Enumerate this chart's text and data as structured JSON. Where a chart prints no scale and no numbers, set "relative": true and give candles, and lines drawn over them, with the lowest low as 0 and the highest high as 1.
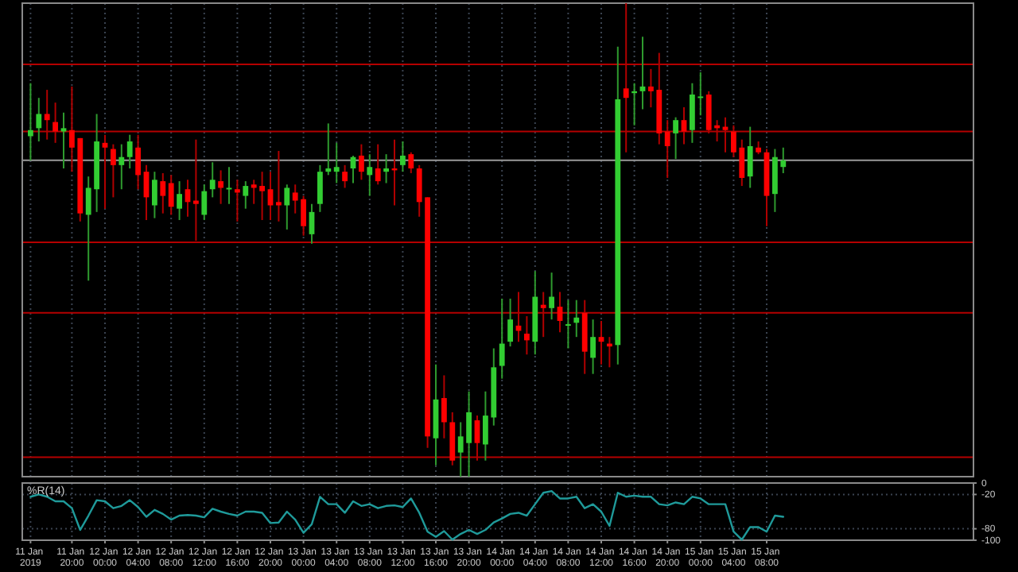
{
  "chart_data": [
    {
      "type": "candlestick",
      "relative": true,
      "grid": "x",
      "tick_labels": false,
      "xlim": [
        "2019-01-11T14:00",
        "2019-01-16T09:00"
      ],
      "xticks": [
        {
          "value": "2019-01-11T15:00",
          "label": null
        },
        {
          "value": "2019-01-11T20:00",
          "label": null
        },
        {
          "value": "2019-01-12T00:00",
          "label": null
        },
        {
          "value": "2019-01-12T04:00",
          "label": null
        },
        {
          "value": "2019-01-12T08:00",
          "label": null
        },
        {
          "value": "2019-01-12T12:00",
          "label": null
        },
        {
          "value": "2019-01-12T16:00",
          "label": null
        },
        {
          "value": "2019-01-12T20:00",
          "label": null
        },
        {
          "value": "2019-01-13T00:00",
          "label": null
        },
        {
          "value": "2019-01-13T04:00",
          "label": null
        },
        {
          "value": "2019-01-13T08:00",
          "label": null
        },
        {
          "value": "2019-01-13T12:00",
          "label": null
        },
        {
          "value": "2019-01-13T16:00",
          "label": null
        },
        {
          "value": "2019-01-13T20:00",
          "label": null
        },
        {
          "value": "2019-01-14T00:00",
          "label": null
        },
        {
          "value": "2019-01-14T04:00",
          "label": null
        },
        {
          "value": "2019-01-14T08:00",
          "label": null
        },
        {
          "value": "2019-01-14T12:00",
          "label": null
        },
        {
          "value": "2019-01-14T16:00",
          "label": null
        },
        {
          "value": "2019-01-14T20:00",
          "label": null
        },
        {
          "value": "2019-01-15T00:00",
          "label": null
        },
        {
          "value": "2019-01-15T04:00",
          "label": null
        },
        {
          "value": "2019-01-15T08:00",
          "label": null
        }
      ],
      "x": [
        "2019-01-11T15:00",
        "2019-01-11T16:00",
        "2019-01-11T17:00",
        "2019-01-11T18:00",
        "2019-01-11T19:00",
        "2019-01-11T20:00",
        "2019-01-11T21:00",
        "2019-01-11T22:00",
        "2019-01-11T23:00",
        "2019-01-12T00:00",
        "2019-01-12T01:00",
        "2019-01-12T02:00",
        "2019-01-12T03:00",
        "2019-01-12T04:00",
        "2019-01-12T05:00",
        "2019-01-12T06:00",
        "2019-01-12T07:00",
        "2019-01-12T08:00",
        "2019-01-12T09:00",
        "2019-01-12T10:00",
        "2019-01-12T11:00",
        "2019-01-12T12:00",
        "2019-01-12T13:00",
        "2019-01-12T14:00",
        "2019-01-12T15:00",
        "2019-01-12T16:00",
        "2019-01-12T17:00",
        "2019-01-12T18:00",
        "2019-01-12T19:00",
        "2019-01-12T20:00",
        "2019-01-12T21:00",
        "2019-01-12T22:00",
        "2019-01-12T23:00",
        "2019-01-13T00:00",
        "2019-01-13T01:00",
        "2019-01-13T02:00",
        "2019-01-13T03:00",
        "2019-01-13T04:00",
        "2019-01-13T05:00",
        "2019-01-13T06:00",
        "2019-01-13T07:00",
        "2019-01-13T08:00",
        "2019-01-13T09:00",
        "2019-01-13T10:00",
        "2019-01-13T11:00",
        "2019-01-13T12:00",
        "2019-01-13T13:00",
        "2019-01-13T14:00",
        "2019-01-13T15:00",
        "2019-01-13T16:00",
        "2019-01-13T17:00",
        "2019-01-13T18:00",
        "2019-01-13T19:00",
        "2019-01-13T20:00",
        "2019-01-13T21:00",
        "2019-01-13T22:00",
        "2019-01-13T23:00",
        "2019-01-14T00:00",
        "2019-01-14T01:00",
        "2019-01-14T02:00",
        "2019-01-14T03:00",
        "2019-01-14T04:00",
        "2019-01-14T05:00",
        "2019-01-14T06:00",
        "2019-01-14T07:00",
        "2019-01-14T08:00",
        "2019-01-14T09:00",
        "2019-01-14T10:00",
        "2019-01-14T11:00",
        "2019-01-14T12:00",
        "2019-01-14T13:00",
        "2019-01-14T14:00",
        "2019-01-14T15:00",
        "2019-01-14T16:00",
        "2019-01-14T17:00",
        "2019-01-14T18:00",
        "2019-01-14T19:00",
        "2019-01-14T20:00",
        "2019-01-14T21:00",
        "2019-01-14T22:00",
        "2019-01-14T23:00",
        "2019-01-15T00:00",
        "2019-01-15T01:00",
        "2019-01-15T02:00",
        "2019-01-15T03:00",
        "2019-01-15T04:00",
        "2019-01-15T05:00",
        "2019-01-15T06:00",
        "2019-01-15T07:00",
        "2019-01-15T08:00",
        "2019-01-15T09:00",
        "2019-01-15T10:00"
      ],
      "ohlc": [
        [
          0.719,
          0.831,
          0.668,
          0.732
        ],
        [
          0.736,
          0.8,
          0.708,
          0.766
        ],
        [
          0.766,
          0.817,
          0.712,
          0.753
        ],
        [
          0.749,
          0.79,
          0.705,
          0.729
        ],
        [
          0.729,
          0.769,
          0.651,
          0.736
        ],
        [
          0.732,
          0.824,
          0.644,
          0.695
        ],
        [
          0.715,
          0.715,
          0.539,
          0.556
        ],
        [
          0.553,
          0.634,
          0.414,
          0.61
        ],
        [
          0.607,
          0.766,
          0.559,
          0.708
        ],
        [
          0.705,
          0.722,
          0.566,
          0.695
        ],
        [
          0.692,
          0.702,
          0.59,
          0.658
        ],
        [
          0.658,
          0.702,
          0.607,
          0.675
        ],
        [
          0.675,
          0.722,
          0.651,
          0.708
        ],
        [
          0.695,
          0.722,
          0.607,
          0.637
        ],
        [
          0.644,
          0.658,
          0.542,
          0.59
        ],
        [
          0.573,
          0.644,
          0.546,
          0.627
        ],
        [
          0.624,
          0.641,
          0.556,
          0.593
        ],
        [
          0.62,
          0.637,
          0.553,
          0.57
        ],
        [
          0.566,
          0.624,
          0.542,
          0.597
        ],
        [
          0.607,
          0.627,
          0.549,
          0.58
        ],
        [
          0.583,
          0.712,
          0.498,
          0.576
        ],
        [
          0.553,
          0.617,
          0.542,
          0.603
        ],
        [
          0.607,
          0.664,
          0.59,
          0.627
        ],
        [
          0.624,
          0.647,
          0.576,
          0.61
        ],
        [
          0.607,
          0.654,
          0.576,
          0.61
        ],
        [
          0.607,
          0.627,
          0.539,
          0.6
        ],
        [
          0.593,
          0.624,
          0.566,
          0.614
        ],
        [
          0.617,
          0.627,
          0.576,
          0.61
        ],
        [
          0.614,
          0.644,
          0.542,
          0.603
        ],
        [
          0.607,
          0.644,
          0.542,
          0.573
        ],
        [
          0.58,
          0.688,
          0.539,
          0.573
        ],
        [
          0.573,
          0.617,
          0.522,
          0.61
        ],
        [
          0.6,
          0.617,
          0.556,
          0.583
        ],
        [
          0.586,
          0.593,
          0.509,
          0.529
        ],
        [
          0.512,
          0.576,
          0.492,
          0.559
        ],
        [
          0.576,
          0.658,
          0.559,
          0.644
        ],
        [
          0.644,
          0.746,
          0.637,
          0.651
        ],
        [
          0.644,
          0.705,
          0.62,
          0.654
        ],
        [
          0.644,
          0.658,
          0.61,
          0.624
        ],
        [
          0.651,
          0.678,
          0.62,
          0.675
        ],
        [
          0.678,
          0.702,
          0.627,
          0.644
        ],
        [
          0.637,
          0.681,
          0.593,
          0.654
        ],
        [
          0.651,
          0.702,
          0.617,
          0.624
        ],
        [
          0.644,
          0.681,
          0.62,
          0.651
        ],
        [
          0.651,
          0.712,
          0.573,
          0.647
        ],
        [
          0.658,
          0.708,
          0.644,
          0.678
        ],
        [
          0.681,
          0.685,
          0.641,
          0.651
        ],
        [
          0.651,
          0.658,
          0.549,
          0.58
        ],
        [
          0.59,
          0.59,
          0.061,
          0.085
        ],
        [
          0.081,
          0.237,
          0.024,
          0.163
        ],
        [
          0.166,
          0.214,
          0.081,
          0.115
        ],
        [
          0.115,
          0.136,
          0.024,
          0.034
        ],
        [
          0.051,
          0.115,
          0,
          0.085
        ],
        [
          0.071,
          0.18,
          0,
          0.136
        ],
        [
          0.119,
          0.129,
          0.034,
          0.071
        ],
        [
          0.068,
          0.18,
          0.034,
          0.129
        ],
        [
          0.125,
          0.271,
          0.108,
          0.231
        ],
        [
          0.234,
          0.376,
          0.207,
          0.281
        ],
        [
          0.285,
          0.376,
          0.275,
          0.332
        ],
        [
          0.319,
          0.39,
          0.285,
          0.308
        ],
        [
          0.302,
          0.339,
          0.258,
          0.288
        ],
        [
          0.285,
          0.434,
          0.258,
          0.38
        ],
        [
          0.363,
          0.39,
          0.295,
          0.356
        ],
        [
          0.356,
          0.431,
          0.332,
          0.38
        ],
        [
          0.359,
          0.39,
          0.305,
          0.329
        ],
        [
          0.319,
          0.373,
          0.271,
          0.322
        ],
        [
          0.325,
          0.373,
          0.295,
          0.336
        ],
        [
          0.346,
          0.373,
          0.217,
          0.264
        ],
        [
          0.251,
          0.332,
          0.217,
          0.295
        ],
        [
          0.295,
          0.329,
          0.237,
          0.285
        ],
        [
          0.281,
          0.295,
          0.231,
          0.275
        ],
        [
          0.278,
          0.908,
          0.237,
          0.797
        ],
        [
          0.82,
          1,
          0.685,
          0.8
        ],
        [
          0.81,
          0.831,
          0.742,
          0.814
        ],
        [
          0.814,
          0.929,
          0.776,
          0.824
        ],
        [
          0.824,
          0.861,
          0.78,
          0.814
        ],
        [
          0.817,
          0.895,
          0.702,
          0.725
        ],
        [
          0.729,
          0.753,
          0.631,
          0.698
        ],
        [
          0.725,
          0.759,
          0.671,
          0.753
        ],
        [
          0.753,
          0.78,
          0.702,
          0.729
        ],
        [
          0.732,
          0.831,
          0.705,
          0.807
        ],
        [
          0.8,
          0.854,
          0.763,
          0.803
        ],
        [
          0.807,
          0.814,
          0.725,
          0.732
        ],
        [
          0.742,
          0.753,
          0.708,
          0.736
        ],
        [
          0.739,
          0.759,
          0.685,
          0.732
        ],
        [
          0.729,
          0.742,
          0.675,
          0.685
        ],
        [
          0.695,
          0.712,
          0.614,
          0.631
        ],
        [
          0.634,
          0.739,
          0.61,
          0.698
        ],
        [
          0.695,
          0.708,
          0.681,
          0.685
        ],
        [
          0.685,
          0.692,
          0.529,
          0.593
        ],
        [
          0.597,
          0.692,
          0.559,
          0.675
        ],
        [
          0.654,
          0.695,
          0.641,
          0.668
        ]
      ],
      "ref_lines": [
        {
          "axis": "y",
          "value": 0.871,
          "color": "#b40000"
        },
        {
          "axis": "y",
          "value": 0.729,
          "color": "#b40000"
        },
        {
          "axis": "y",
          "value": 0.495,
          "color": "#b40000"
        },
        {
          "axis": "y",
          "value": 0.346,
          "color": "#b40000"
        },
        {
          "axis": "y",
          "value": 0.041,
          "color": "#b40000"
        },
        {
          "axis": "y",
          "value": 0.668,
          "color": "#9a9a9a"
        }
      ]
    },
    {
      "type": "line",
      "title": "%R(14)",
      "grid": true,
      "xlim": [
        "2019-01-11T14:00",
        "2019-01-16T09:00"
      ],
      "xticks": [
        {
          "value": "2019-01-11T15:00",
          "label": "11 Jan 2019"
        },
        {
          "value": "2019-01-11T20:00",
          "label": "11 Jan 20:00"
        },
        {
          "value": "2019-01-12T00:00",
          "label": "12 Jan 00:00"
        },
        {
          "value": "2019-01-12T04:00",
          "label": "12 Jan 04:00"
        },
        {
          "value": "2019-01-12T08:00",
          "label": "12 Jan 08:00"
        },
        {
          "value": "2019-01-12T12:00",
          "label": "12 Jan 12:00"
        },
        {
          "value": "2019-01-12T16:00",
          "label": "12 Jan 16:00"
        },
        {
          "value": "2019-01-12T20:00",
          "label": "12 Jan 20:00"
        },
        {
          "value": "2019-01-13T00:00",
          "label": "13 Jan 00:00"
        },
        {
          "value": "2019-01-13T04:00",
          "label": "13 Jan 04:00"
        },
        {
          "value": "2019-01-13T08:00",
          "label": "13 Jan 08:00"
        },
        {
          "value": "2019-01-13T12:00",
          "label": "13 Jan 12:00"
        },
        {
          "value": "2019-01-13T16:00",
          "label": "13 Jan 16:00"
        },
        {
          "value": "2019-01-13T20:00",
          "label": "13 Jan 20:00"
        },
        {
          "value": "2019-01-14T00:00",
          "label": "14 Jan 00:00"
        },
        {
          "value": "2019-01-14T04:00",
          "label": "14 Jan 04:00"
        },
        {
          "value": "2019-01-14T08:00",
          "label": "14 Jan 08:00"
        },
        {
          "value": "2019-01-14T12:00",
          "label": "14 Jan 12:00"
        },
        {
          "value": "2019-01-14T16:00",
          "label": "14 Jan 16:00"
        },
        {
          "value": "2019-01-14T20:00",
          "label": "14 Jan 20:00"
        },
        {
          "value": "2019-01-15T00:00",
          "label": "15 Jan 00:00"
        },
        {
          "value": "2019-01-15T04:00",
          "label": "15 Jan 04:00"
        },
        {
          "value": "2019-01-15T08:00",
          "label": "15 Jan 08:00"
        }
      ],
      "ylim": [
        -100,
        0
      ],
      "yticks": [
        0,
        -20,
        -80,
        -100
      ],
      "x": [
        "2019-01-11T15:00",
        "2019-01-11T16:00",
        "2019-01-11T17:00",
        "2019-01-11T18:00",
        "2019-01-11T19:00",
        "2019-01-11T20:00",
        "2019-01-11T21:00",
        "2019-01-11T22:00",
        "2019-01-11T23:00",
        "2019-01-12T00:00",
        "2019-01-12T01:00",
        "2019-01-12T02:00",
        "2019-01-12T03:00",
        "2019-01-12T04:00",
        "2019-01-12T05:00",
        "2019-01-12T06:00",
        "2019-01-12T07:00",
        "2019-01-12T08:00",
        "2019-01-12T09:00",
        "2019-01-12T10:00",
        "2019-01-12T11:00",
        "2019-01-12T12:00",
        "2019-01-12T13:00",
        "2019-01-12T14:00",
        "2019-01-12T15:00",
        "2019-01-12T16:00",
        "2019-01-12T17:00",
        "2019-01-12T18:00",
        "2019-01-12T19:00",
        "2019-01-12T20:00",
        "2019-01-12T21:00",
        "2019-01-12T22:00",
        "2019-01-12T23:00",
        "2019-01-13T00:00",
        "2019-01-13T01:00",
        "2019-01-13T02:00",
        "2019-01-13T03:00",
        "2019-01-13T04:00",
        "2019-01-13T05:00",
        "2019-01-13T06:00",
        "2019-01-13T07:00",
        "2019-01-13T08:00",
        "2019-01-13T09:00",
        "2019-01-13T10:00",
        "2019-01-13T11:00",
        "2019-01-13T12:00",
        "2019-01-13T13:00",
        "2019-01-13T14:00",
        "2019-01-13T15:00",
        "2019-01-13T16:00",
        "2019-01-13T17:00",
        "2019-01-13T18:00",
        "2019-01-13T19:00",
        "2019-01-13T20:00",
        "2019-01-13T21:00",
        "2019-01-13T22:00",
        "2019-01-13T23:00",
        "2019-01-14T00:00",
        "2019-01-14T01:00",
        "2019-01-14T02:00",
        "2019-01-14T03:00",
        "2019-01-14T04:00",
        "2019-01-14T05:00",
        "2019-01-14T06:00",
        "2019-01-14T07:00",
        "2019-01-14T08:00",
        "2019-01-14T09:00",
        "2019-01-14T10:00",
        "2019-01-14T11:00",
        "2019-01-14T12:00",
        "2019-01-14T13:00",
        "2019-01-14T14:00",
        "2019-01-14T15:00",
        "2019-01-14T16:00",
        "2019-01-14T17:00",
        "2019-01-14T18:00",
        "2019-01-14T19:00",
        "2019-01-14T20:00",
        "2019-01-14T21:00",
        "2019-01-14T22:00",
        "2019-01-14T23:00",
        "2019-01-15T00:00",
        "2019-01-15T01:00",
        "2019-01-15T02:00",
        "2019-01-15T03:00",
        "2019-01-15T04:00",
        "2019-01-15T05:00",
        "2019-01-15T06:00",
        "2019-01-15T07:00",
        "2019-01-15T08:00",
        "2019-01-15T09:00",
        "2019-01-15T10:00"
      ],
      "series": [
        {
          "color": "#1f9a9a",
          "values": [
            -24,
            -20,
            -24,
            -32,
            -32,
            -44,
            -82,
            -57,
            -30,
            -32,
            -44,
            -40,
            -30,
            -42,
            -59,
            -47,
            -54,
            -64,
            -57,
            -56,
            -57,
            -60,
            -45,
            -50,
            -54,
            -57,
            -50,
            -50,
            -52,
            -70,
            -69,
            -50,
            -64,
            -87,
            -72,
            -24,
            -37,
            -37,
            -52,
            -32,
            -40,
            -37,
            -44,
            -40,
            -39,
            -42,
            -27,
            -52,
            -85,
            -94,
            -84,
            -99,
            -89,
            -82,
            -89,
            -82,
            -69,
            -62,
            -54,
            -52,
            -57,
            -37,
            -17,
            -14,
            -27,
            -27,
            -24,
            -44,
            -37,
            -50,
            -75,
            -17,
            -24,
            -22,
            -24,
            -24,
            -37,
            -39,
            -34,
            -37,
            -24,
            -27,
            -37,
            -37,
            -37,
            -85,
            -99,
            -77,
            -77,
            -85,
            -57,
            -59
          ]
        }
      ]
    }
  ]
}
